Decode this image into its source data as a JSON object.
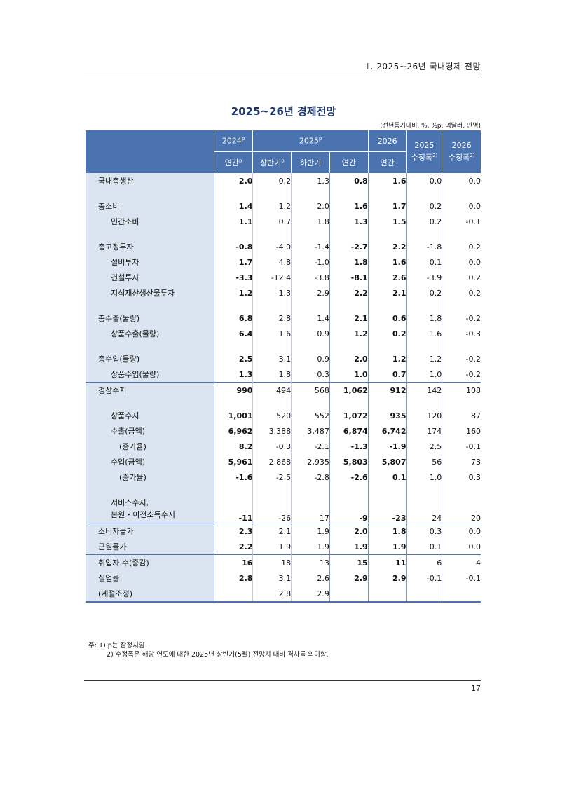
{
  "running_head": "Ⅱ. 2025~26년 국내경제 전망",
  "title": "2025~26년 경제전망",
  "units": "(전년동기대비, %, %p, 억달러, 만명)",
  "header": {
    "y2024": "2024",
    "y2024_sup": "p",
    "y2025": "2025",
    "y2025_sup": "p",
    "y2026": "2026",
    "r2025_year": "2025",
    "r2025_label": "수정폭",
    "r2025_sup": "2)",
    "r2026_year": "2026",
    "r2026_label": "수정폭",
    "r2026_sup": "2)",
    "annual": "연간",
    "annual_sup": "p",
    "h1": "상반기",
    "h1_sup": "p",
    "h2": "하반기",
    "annual_2025": "연간",
    "annual_2026": "연간"
  },
  "rows": [
    {
      "label": "국내총생산",
      "v": [
        "2.0",
        "0.2",
        "1.3",
        "0.8",
        "1.6",
        "0.0",
        "0.0"
      ]
    },
    {
      "label": "총소비",
      "v": [
        "1.4",
        "1.2",
        "2.0",
        "1.6",
        "1.7",
        "0.2",
        "0.0"
      ]
    },
    {
      "label": "민간소비",
      "v": [
        "1.1",
        "0.7",
        "1.8",
        "1.3",
        "1.5",
        "0.2",
        "-0.1"
      ]
    },
    {
      "label": "총고정투자",
      "v": [
        "-0.8",
        "-4.0",
        "-1.4",
        "-2.7",
        "2.2",
        "-1.8",
        "0.2"
      ]
    },
    {
      "label": "설비투자",
      "v": [
        "1.7",
        "4.8",
        "-1.0",
        "1.8",
        "1.6",
        "0.1",
        "0.0"
      ]
    },
    {
      "label": "건설투자",
      "v": [
        "-3.3",
        "-12.4",
        "-3.8",
        "-8.1",
        "2.6",
        "-3.9",
        "0.2"
      ]
    },
    {
      "label": "지식재산생산물투자",
      "v": [
        "1.2",
        "1.3",
        "2.9",
        "2.2",
        "2.1",
        "0.2",
        "0.2"
      ]
    },
    {
      "label": "총수출(물량)",
      "v": [
        "6.8",
        "2.8",
        "1.4",
        "2.1",
        "0.6",
        "1.8",
        "-0.2"
      ]
    },
    {
      "label": "상품수출(물량)",
      "v": [
        "6.4",
        "1.6",
        "0.9",
        "1.2",
        "0.2",
        "1.6",
        "-0.3"
      ]
    },
    {
      "label": "총수입(물량)",
      "v": [
        "2.5",
        "3.1",
        "0.9",
        "2.0",
        "1.2",
        "1.2",
        "-0.2"
      ]
    },
    {
      "label": "상품수입(물량)",
      "v": [
        "1.3",
        "1.8",
        "0.3",
        "1.0",
        "0.7",
        "1.0",
        "-0.2"
      ]
    },
    {
      "label": "경상수지",
      "v": [
        "990",
        "494",
        "568",
        "1,062",
        "912",
        "142",
        "108"
      ]
    },
    {
      "label": "상품수지",
      "v": [
        "1,001",
        "520",
        "552",
        "1,072",
        "935",
        "120",
        "87"
      ]
    },
    {
      "label": "수출(금액)",
      "v": [
        "6,962",
        "3,388",
        "3,487",
        "6,874",
        "6,742",
        "174",
        "160"
      ]
    },
    {
      "label": "(증가율)",
      "v": [
        "8.2",
        "-0.3",
        "-2.1",
        "-1.3",
        "-1.9",
        "2.5",
        "-0.1"
      ]
    },
    {
      "label": "수입(금액)",
      "v": [
        "5,961",
        "2,868",
        "2,935",
        "5,803",
        "5,807",
        "56",
        "73"
      ]
    },
    {
      "label": "(증가율)",
      "v": [
        "-1.6",
        "-2.5",
        "-2.8",
        "-2.6",
        "0.1",
        "1.0",
        "0.3"
      ]
    },
    {
      "label": "서비스수지,",
      "label2": "본원・이전소득수지",
      "v": [
        "-11",
        "-26",
        "17",
        "-9",
        "-23",
        "24",
        "20"
      ]
    },
    {
      "label": "소비자물가",
      "v": [
        "2.3",
        "2.1",
        "1.9",
        "2.0",
        "1.8",
        "0.3",
        "0.0"
      ]
    },
    {
      "label": "근원물가",
      "v": [
        "2.2",
        "1.9",
        "1.9",
        "1.9",
        "1.9",
        "0.1",
        "0.0"
      ]
    },
    {
      "label": "취업자 수(증감)",
      "v": [
        "16",
        "18",
        "13",
        "15",
        "11",
        "6",
        "4"
      ]
    },
    {
      "label": "실업률",
      "v": [
        "2.8",
        "3.1",
        "2.6",
        "2.9",
        "2.9",
        "-0.1",
        "-0.1"
      ]
    },
    {
      "label": "(계절조정)",
      "v": [
        "",
        "2.8",
        "2.9",
        "",
        "",
        "",
        ""
      ]
    }
  ],
  "notes": {
    "n1": "주: 1) p는 잠정치임.",
    "n2": "2) 수정폭은 해당 연도에 대한 2025년 상반기(5월) 전망치 대비 격차를 의미함."
  },
  "page_number": "17"
}
